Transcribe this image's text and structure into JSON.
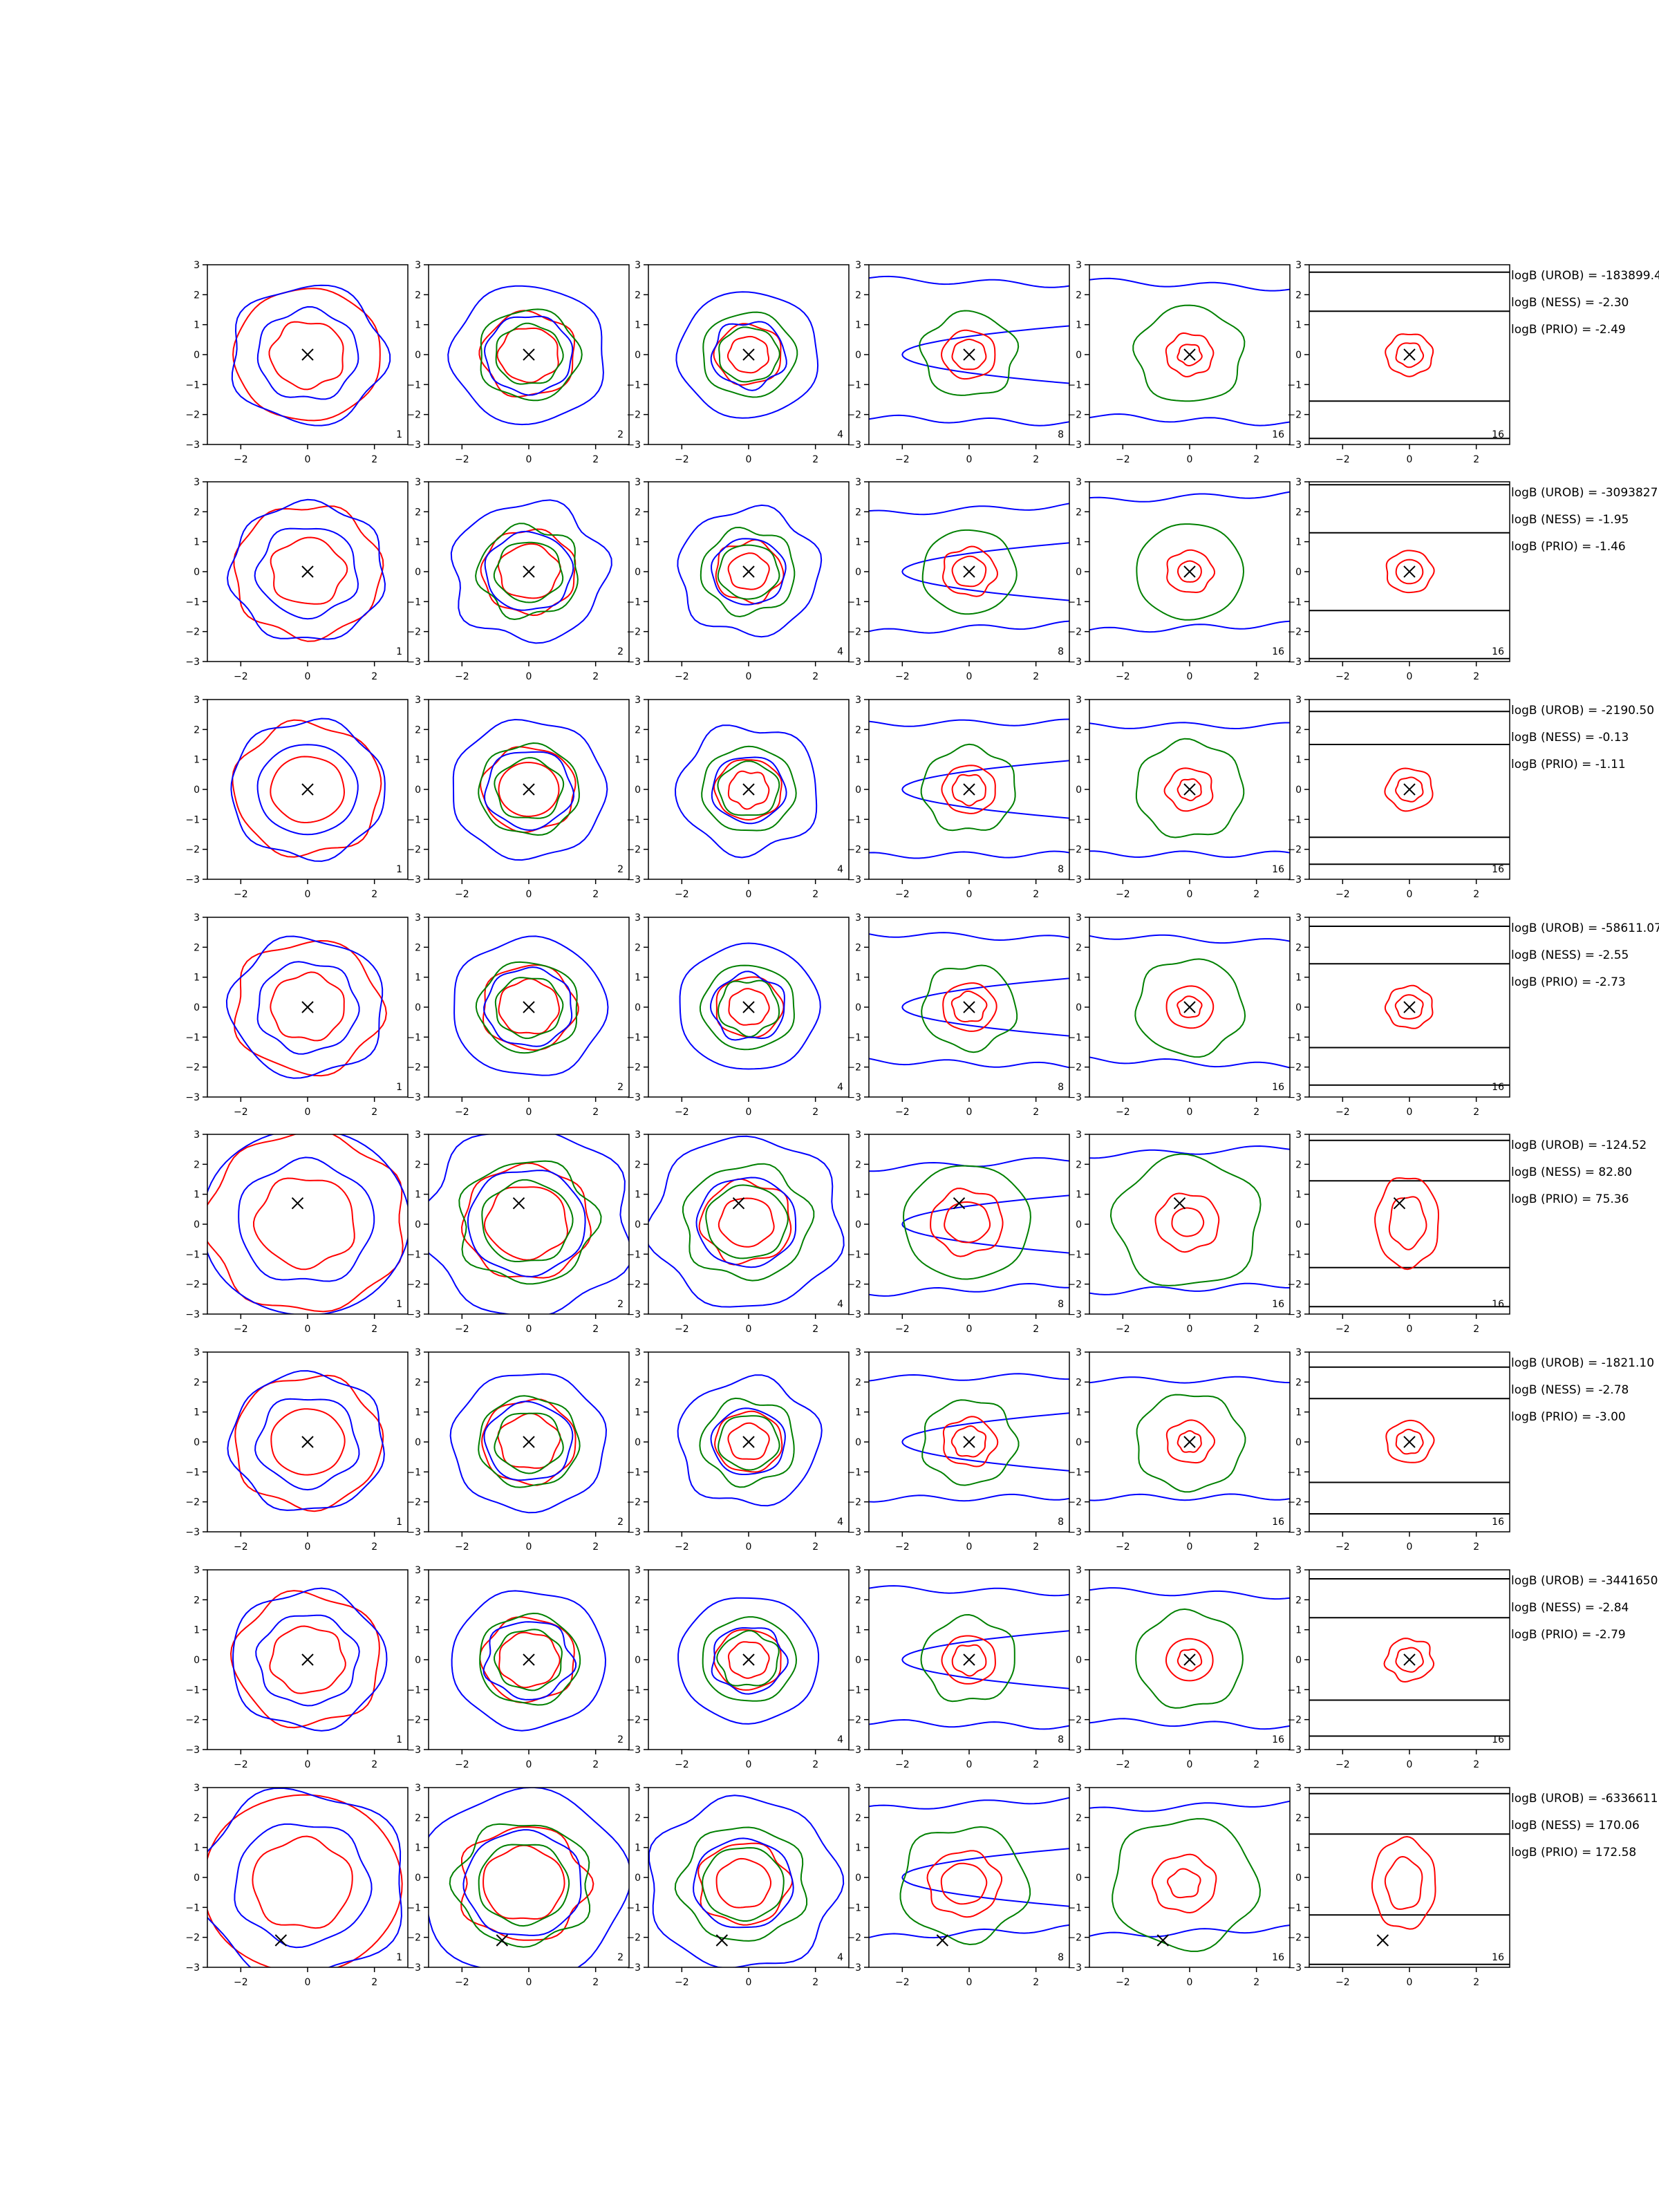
{
  "chart_data": {
    "type": "contour-grid",
    "rows": 8,
    "panel_numbers": [
      "1",
      "2",
      "4",
      "8",
      "16",
      "16"
    ],
    "xlim": [
      -3,
      3
    ],
    "ylim": [
      -3,
      3
    ],
    "xticks": [
      "−2",
      "0",
      "2"
    ],
    "yticks": [
      "3",
      "2",
      "1",
      "0",
      "−1",
      "−2",
      "−3"
    ],
    "colors": {
      "red": "#ff0000",
      "blue": "#0000ff",
      "green": "#008000",
      "black": "#000000"
    },
    "marker": "x",
    "row_markers": [
      [
        0,
        0
      ],
      [
        0,
        0
      ],
      [
        0,
        0
      ],
      [
        0,
        0
      ],
      [
        -0.3,
        0.7
      ],
      [
        0,
        0
      ],
      [
        0,
        0
      ],
      [
        -0.8,
        -2.1
      ]
    ],
    "row_wide": [
      false,
      false,
      false,
      false,
      true,
      false,
      false,
      true
    ],
    "last_panel_hlines": [
      [
        2.75,
        1.45,
        -1.55,
        -2.8
      ],
      [
        2.9,
        1.3,
        -1.3,
        -2.9
      ],
      [
        2.6,
        1.5,
        -1.6,
        -2.5
      ],
      [
        2.7,
        1.45,
        -1.35,
        -2.6
      ],
      [
        2.8,
        1.45,
        -1.45,
        -2.75
      ],
      [
        2.5,
        1.45,
        -1.35,
        -2.4
      ],
      [
        2.7,
        1.4,
        -1.35,
        -2.55
      ],
      [
        2.8,
        1.45,
        -1.25,
        -2.9
      ]
    ],
    "annotations": [
      [
        "logB (UROB) = -183899.4",
        "logB (NESS) = -2.30",
        "logB (PRIO) = -2.49"
      ],
      [
        "logB (UROB) = -3093827",
        "logB (NESS) = -1.95",
        "logB (PRIO) = -1.46"
      ],
      [
        "logB (UROB) = -2190.50",
        "logB (NESS) = -0.13",
        "logB (PRIO) = -1.11"
      ],
      [
        "logB (UROB) = -58611.07",
        "logB (NESS) = -2.55",
        "logB (PRIO) = -2.73"
      ],
      [
        "logB (UROB) = -124.52",
        "logB (NESS) = 82.80",
        "logB (PRIO) = 75.36"
      ],
      [
        "logB (UROB) = -1821.10",
        "logB (NESS) = -2.78",
        "logB (PRIO) = -3.00"
      ],
      [
        "logB (UROB) = -3441650",
        "logB (NESS) = -2.84",
        "logB (PRIO) = -2.79"
      ],
      [
        "logB (UROB) = -6336611",
        "logB (NESS) = 170.06",
        "logB (PRIO) = 172.58"
      ]
    ]
  }
}
